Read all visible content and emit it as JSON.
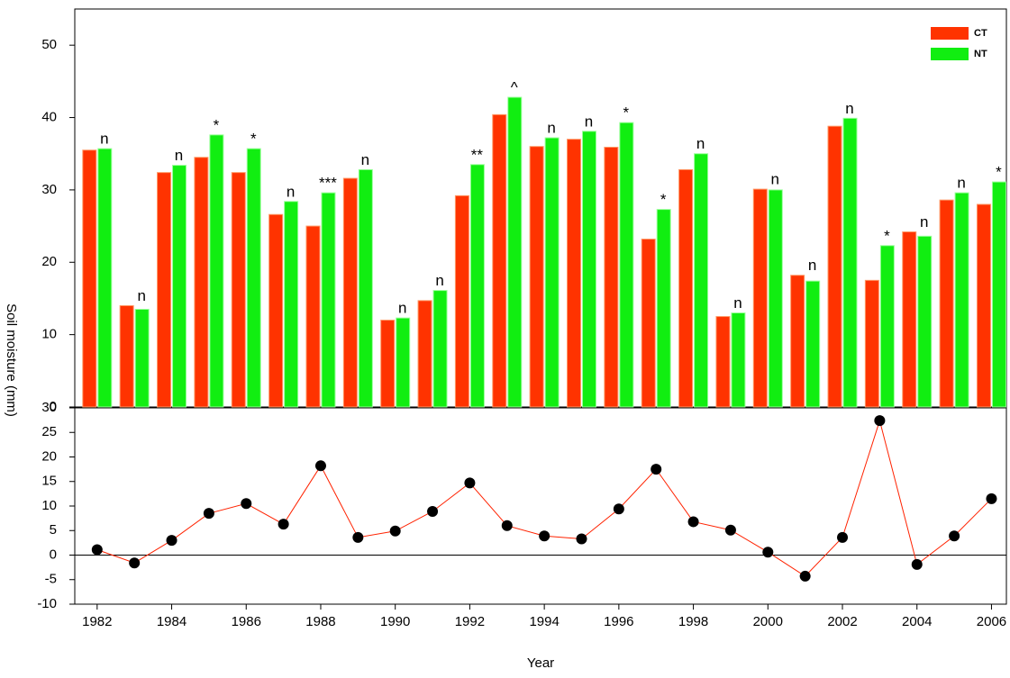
{
  "chart_data": [
    {
      "type": "bar",
      "ylabel": "Soil moisture (mm)",
      "legend": "upper right",
      "x": [
        1982,
        1983,
        1984,
        1985,
        1986,
        1987,
        1988,
        1989,
        1990,
        1991,
        1992,
        1993,
        1994,
        1995,
        1996,
        1997,
        1998,
        1999,
        2000,
        2001,
        2002,
        2003,
        2004,
        2005,
        2006
      ],
      "xlim": [
        1981.4,
        2006.4
      ],
      "ylim": [
        0,
        55
      ],
      "yticks": [
        0,
        10,
        20,
        30,
        40,
        50
      ],
      "series": [
        {
          "name": "CT",
          "color": "#ff3300",
          "values": [
            35.5,
            14,
            32.4,
            34.5,
            32.4,
            26.6,
            25,
            31.6,
            12,
            14.7,
            29.2,
            40.4,
            36,
            37,
            35.9,
            23.2,
            32.8,
            12.5,
            30.1,
            18.2,
            38.8,
            17.5,
            24.2,
            28.6,
            28
          ]
        },
        {
          "name": "NT",
          "color": "#11ee11",
          "values": [
            35.7,
            13.5,
            33.4,
            37.6,
            35.7,
            28.4,
            29.6,
            32.8,
            12.3,
            16.1,
            33.5,
            42.8,
            37.2,
            38.1,
            39.3,
            27.3,
            35,
            13,
            30,
            17.4,
            39.9,
            22.3,
            23.6,
            29.6,
            31.1
          ]
        }
      ],
      "annotations": [
        "n",
        "n",
        "n",
        "*",
        "*",
        "n",
        "***",
        "n",
        "n",
        "n",
        "**",
        "^",
        "n",
        "n",
        "*",
        "*",
        "n",
        "n",
        "n",
        "n",
        "n",
        "*",
        "n",
        "n",
        "*"
      ]
    },
    {
      "type": "line",
      "xlabel": "Year",
      "x": [
        1982,
        1983,
        1984,
        1985,
        1986,
        1987,
        1988,
        1989,
        1990,
        1991,
        1992,
        1993,
        1994,
        1995,
        1996,
        1997,
        1998,
        1999,
        2000,
        2001,
        2002,
        2003,
        2004,
        2005,
        2006
      ],
      "xlim": [
        1981.4,
        2006.4
      ],
      "xticks": [
        1982,
        1984,
        1986,
        1988,
        1990,
        1992,
        1994,
        1996,
        1998,
        2000,
        2002,
        2004,
        2006
      ],
      "ylim": [
        -10,
        30
      ],
      "yticks": [
        -10,
        -5,
        0,
        5,
        10,
        15,
        20,
        25,
        30
      ],
      "reference_line": 0,
      "series": [
        {
          "color": "#ff2200",
          "marker_color": "#000000",
          "values": [
            1.1,
            -1.6,
            3,
            8.5,
            10.5,
            6.3,
            18.2,
            3.6,
            4.9,
            8.9,
            14.7,
            6,
            3.9,
            3.3,
            9.4,
            17.5,
            6.8,
            5.1,
            0.6,
            -4.3,
            3.6,
            27.4,
            -1.9,
            3.9,
            11.5
          ]
        }
      ]
    }
  ]
}
